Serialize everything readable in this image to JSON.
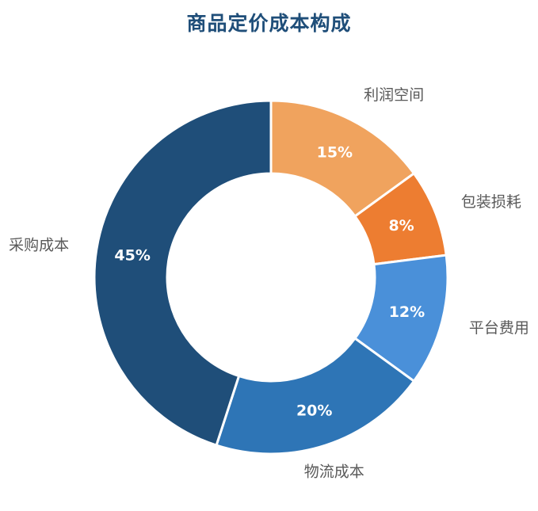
{
  "chart_data": {
    "type": "pie",
    "title": "商品定价成本构成",
    "donut": true,
    "legend": "none",
    "categories": [
      "利润空间",
      "包装损耗",
      "平台费用",
      "物流成本",
      "采购成本"
    ],
    "values": [
      15,
      8,
      12,
      20,
      45
    ],
    "value_labels": [
      "15%",
      "8%",
      "12%",
      "20%",
      "45%"
    ],
    "colors": [
      "#f0a35e",
      "#ed7d31",
      "#4a90d9",
      "#2e75b6",
      "#1f4e79"
    ]
  }
}
